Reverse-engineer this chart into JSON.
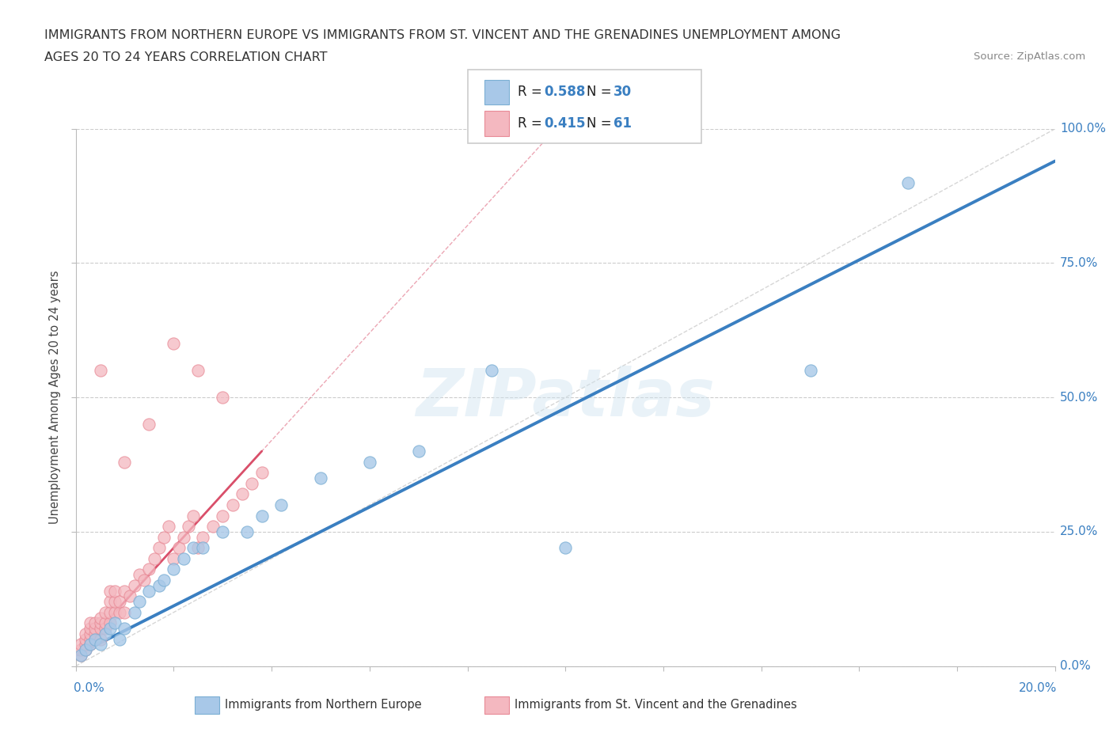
{
  "title_line1": "IMMIGRANTS FROM NORTHERN EUROPE VS IMMIGRANTS FROM ST. VINCENT AND THE GRENADINES UNEMPLOYMENT AMONG",
  "title_line2": "AGES 20 TO 24 YEARS CORRELATION CHART",
  "source": "Source: ZipAtlas.com",
  "ylabel": "Unemployment Among Ages 20 to 24 years",
  "legend1_label": "Immigrants from Northern Europe",
  "legend2_label": "Immigrants from St. Vincent and the Grenadines",
  "R1": 0.588,
  "N1": 30,
  "R2": 0.415,
  "N2": 61,
  "blue_color": "#a8c8e8",
  "blue_edge_color": "#7bafd4",
  "pink_color": "#f4b8c0",
  "pink_edge_color": "#e88a96",
  "blue_line_color": "#3a7fc1",
  "pink_line_color": "#d94f6a",
  "dashed_line_color": "#cccccc",
  "watermark": "ZIPatlas",
  "blue_scatter_x": [
    0.001,
    0.002,
    0.003,
    0.004,
    0.005,
    0.006,
    0.007,
    0.008,
    0.009,
    0.01,
    0.012,
    0.013,
    0.015,
    0.017,
    0.018,
    0.02,
    0.022,
    0.024,
    0.026,
    0.03,
    0.035,
    0.038,
    0.042,
    0.05,
    0.06,
    0.07,
    0.085,
    0.1,
    0.15,
    0.17
  ],
  "blue_scatter_y": [
    0.02,
    0.03,
    0.04,
    0.05,
    0.04,
    0.06,
    0.07,
    0.08,
    0.05,
    0.07,
    0.1,
    0.12,
    0.14,
    0.15,
    0.16,
    0.18,
    0.2,
    0.22,
    0.22,
    0.25,
    0.25,
    0.28,
    0.3,
    0.35,
    0.38,
    0.4,
    0.55,
    0.22,
    0.55,
    0.9
  ],
  "pink_scatter_x": [
    0.001,
    0.001,
    0.001,
    0.002,
    0.002,
    0.002,
    0.002,
    0.003,
    0.003,
    0.003,
    0.003,
    0.003,
    0.004,
    0.004,
    0.004,
    0.005,
    0.005,
    0.005,
    0.005,
    0.006,
    0.006,
    0.006,
    0.007,
    0.007,
    0.007,
    0.007,
    0.008,
    0.008,
    0.008,
    0.009,
    0.009,
    0.01,
    0.01,
    0.011,
    0.012,
    0.013,
    0.014,
    0.015,
    0.016,
    0.017,
    0.018,
    0.019,
    0.02,
    0.021,
    0.022,
    0.023,
    0.024,
    0.025,
    0.026,
    0.028,
    0.03,
    0.032,
    0.034,
    0.036,
    0.038,
    0.02,
    0.025,
    0.03,
    0.015,
    0.01,
    0.005
  ],
  "pink_scatter_y": [
    0.02,
    0.03,
    0.04,
    0.03,
    0.04,
    0.05,
    0.06,
    0.04,
    0.05,
    0.06,
    0.07,
    0.08,
    0.06,
    0.07,
    0.08,
    0.05,
    0.07,
    0.08,
    0.09,
    0.07,
    0.08,
    0.1,
    0.08,
    0.1,
    0.12,
    0.14,
    0.1,
    0.12,
    0.14,
    0.1,
    0.12,
    0.1,
    0.14,
    0.13,
    0.15,
    0.17,
    0.16,
    0.18,
    0.2,
    0.22,
    0.24,
    0.26,
    0.2,
    0.22,
    0.24,
    0.26,
    0.28,
    0.22,
    0.24,
    0.26,
    0.28,
    0.3,
    0.32,
    0.34,
    0.36,
    0.6,
    0.55,
    0.5,
    0.45,
    0.38,
    0.55
  ],
  "xmin": 0.0,
  "xmax": 0.2,
  "ymin": 0.0,
  "ymax": 1.0,
  "yticks": [
    0.0,
    0.25,
    0.5,
    0.75,
    1.0
  ],
  "ytick_labels": [
    "0.0%",
    "25.0%",
    "50.0%",
    "75.0%",
    "100.0%"
  ],
  "xtick_left_label": "0.0%",
  "xtick_right_label": "20.0%"
}
